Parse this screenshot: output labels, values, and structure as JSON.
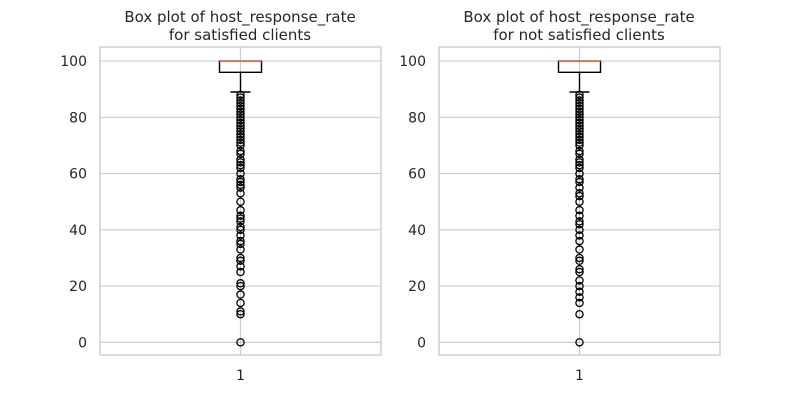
{
  "chart_data": [
    {
      "type": "box",
      "title_lines": [
        "Box plot of host_response_rate",
        "for satisfied clients"
      ],
      "xlabel": "",
      "ylabel": "",
      "categories": [
        "1"
      ],
      "ylim": [
        -4.5,
        105
      ],
      "yticks": [
        0,
        20,
        40,
        60,
        80,
        100
      ],
      "grid": true,
      "box": {
        "whisker_low": 89,
        "q1": 96,
        "median": 100,
        "q3": 100,
        "whisker_high": 100
      },
      "outliers": [
        0,
        10,
        11,
        14,
        17,
        20,
        21,
        25,
        27,
        29,
        30,
        33,
        35,
        36,
        38,
        40,
        41,
        43,
        44,
        45,
        47,
        50,
        53,
        55,
        56,
        57,
        58,
        60,
        62,
        63,
        64,
        65,
        67,
        68,
        70,
        71,
        72,
        73,
        74,
        75,
        76,
        77,
        78,
        79,
        80,
        81,
        82,
        83,
        84,
        85,
        86,
        87,
        88
      ]
    },
    {
      "type": "box",
      "title_lines": [
        "Box plot of host_response_rate",
        "for not satisfied clients"
      ],
      "xlabel": "",
      "ylabel": "",
      "categories": [
        "1"
      ],
      "ylim": [
        -4.5,
        105
      ],
      "yticks": [
        0,
        20,
        40,
        60,
        80,
        100
      ],
      "grid": true,
      "box": {
        "whisker_low": 89,
        "q1": 96,
        "median": 100,
        "q3": 100,
        "whisker_high": 100
      },
      "outliers": [
        0,
        10,
        14,
        16,
        18,
        20,
        22,
        25,
        26,
        29,
        30,
        33,
        36,
        38,
        40,
        42,
        43,
        45,
        47,
        50,
        52,
        53,
        55,
        57,
        58,
        60,
        62,
        63,
        64,
        65,
        67,
        68,
        70,
        71,
        72,
        73,
        74,
        75,
        76,
        77,
        78,
        79,
        80,
        81,
        82,
        83,
        84,
        85,
        86,
        87,
        88
      ]
    }
  ]
}
